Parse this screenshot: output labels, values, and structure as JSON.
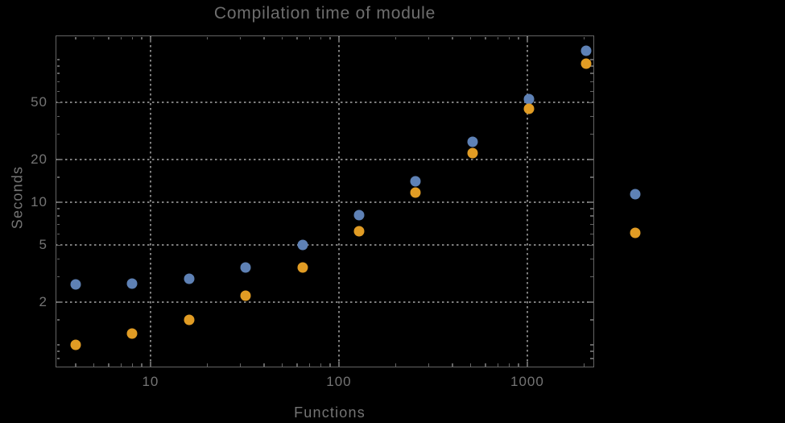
{
  "title": "Compilation time of module",
  "axes": {
    "x_label": "Functions",
    "y_label": "Seconds"
  },
  "colors": {
    "background": "#000000",
    "frame": "#646464",
    "gridline": "#7d7d7d",
    "tick_label_text": "#747474",
    "title_text": "#6e6e6e",
    "series_blue": "#5e81b5",
    "series_orange": "#e19c24"
  },
  "ticks": {
    "x_major": [
      10,
      100,
      1000
    ],
    "x_minor": [
      4,
      5,
      6,
      7,
      8,
      9,
      20,
      30,
      40,
      50,
      60,
      70,
      80,
      90,
      200,
      300,
      400,
      500,
      600,
      700,
      800,
      900,
      2000
    ],
    "y_major": [
      50,
      20,
      10,
      5,
      2
    ],
    "y_minor": [
      0.8,
      0.9,
      1,
      1.5,
      3,
      4,
      6,
      7,
      8,
      9,
      15,
      30,
      40,
      60,
      70,
      80,
      90,
      100
    ]
  },
  "legend": {
    "markers": [
      {
        "name": "blue",
        "color": "#5e81b5"
      },
      {
        "name": "orange",
        "color": "#e19c24"
      }
    ]
  },
  "chart_data": {
    "type": "scatter",
    "title": "Compilation time of module",
    "xlabel": "Functions",
    "ylabel": "Seconds",
    "x_scale": "log",
    "y_scale": "log",
    "xlim": [
      3.1,
      2270
    ],
    "ylim": [
      0.7,
      148
    ],
    "grid": "dotted",
    "x_gridlines": [
      10,
      100,
      1000
    ],
    "y_gridlines": [
      2,
      5,
      10,
      20,
      50
    ],
    "x": [
      4,
      8,
      16,
      32,
      64,
      128,
      256,
      512,
      1024,
      2048
    ],
    "series": [
      {
        "name": "blue",
        "color": "#5e81b5",
        "values": [
          2.65,
          2.7,
          2.9,
          3.5,
          5.0,
          8.1,
          14,
          26.5,
          53,
          115
        ]
      },
      {
        "name": "orange",
        "color": "#e19c24",
        "values": [
          1.0,
          1.2,
          1.5,
          2.2,
          3.5,
          6.3,
          11.7,
          22,
          45,
          94
        ]
      }
    ],
    "legend_position": "right-outside-middle"
  }
}
